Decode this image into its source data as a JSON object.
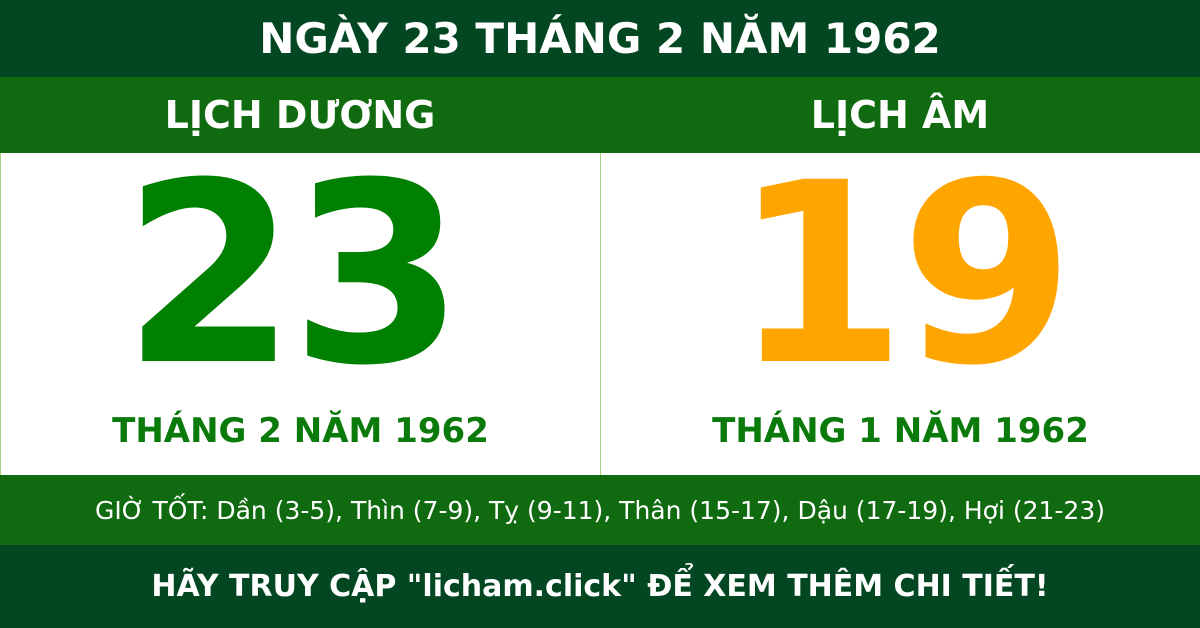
{
  "header": {
    "title": "NGÀY 23 THÁNG 2 NĂM 1962"
  },
  "solar": {
    "label": "LỊCH DƯƠNG",
    "day": "23",
    "month_year": "THÁNG 2 NĂM 1962"
  },
  "lunar": {
    "label": "LỊCH ÂM",
    "day": "19",
    "month_year": "THÁNG 1 NĂM 1962"
  },
  "good_hours": "GIỜ TỐT: Dần (3-5), Thìn (7-9), Tỵ (9-11), Thân (15-17), Dậu (17-19), Hợi (21-23)",
  "footer": {
    "text": "HÃY TRUY CẬP \"licham.click\" ĐỂ XEM THÊM CHI TIẾT!"
  },
  "colors": {
    "dark_green": "#034722",
    "green": "#106b10",
    "solar_number": "#008000",
    "lunar_number": "#ffa500"
  }
}
